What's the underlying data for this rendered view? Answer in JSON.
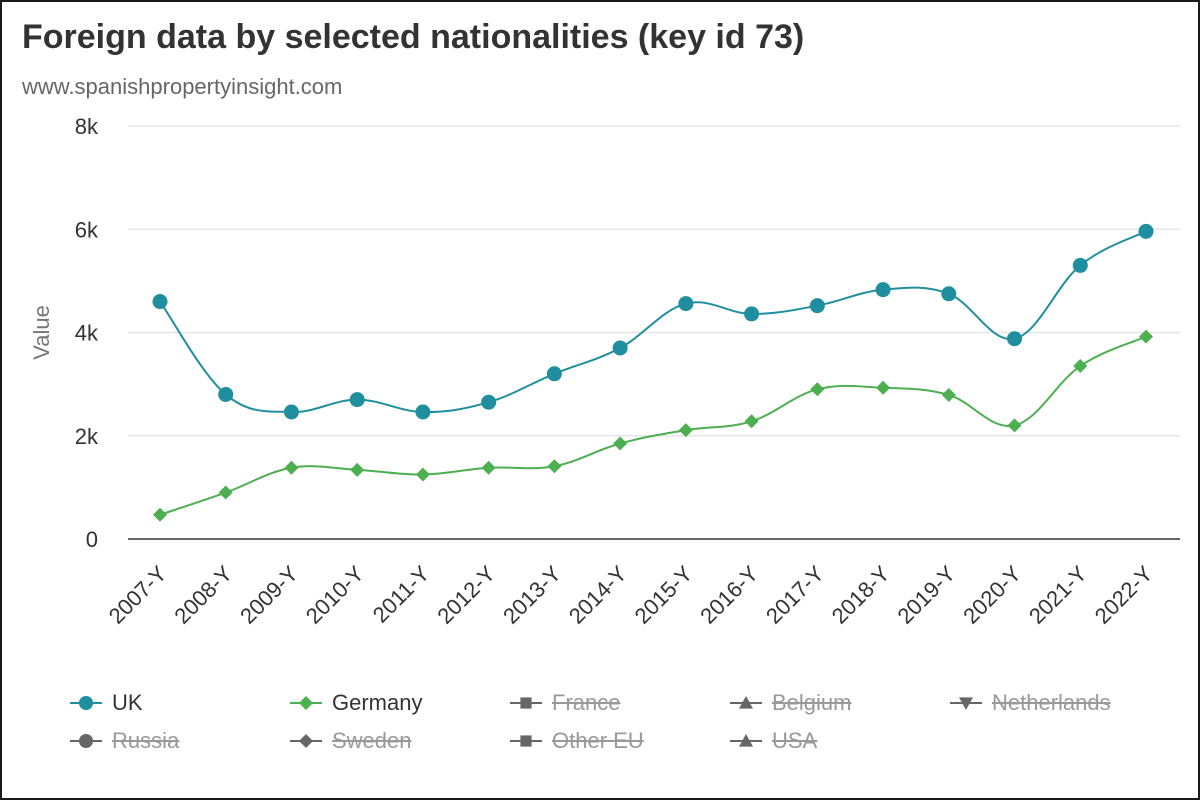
{
  "header": {
    "title": "Foreign data by selected nationalities (key id 73)",
    "subtitle": "www.spanishpropertyinsight.com"
  },
  "chart_data": {
    "type": "line",
    "ylabel": "Value",
    "xlabel": "",
    "ylim": [
      0,
      8000
    ],
    "yticks": [
      0,
      2000,
      4000,
      6000,
      8000
    ],
    "ytick_labels": [
      "0",
      "2k",
      "4k",
      "6k",
      "8k"
    ],
    "grid": true,
    "legend_position": "bottom",
    "categories": [
      "2007-Y",
      "2008-Y",
      "2009-Y",
      "2010-Y",
      "2011-Y",
      "2012-Y",
      "2013-Y",
      "2014-Y",
      "2015-Y",
      "2016-Y",
      "2017-Y",
      "2018-Y",
      "2019-Y",
      "2020-Y",
      "2021-Y",
      "2022-Y"
    ],
    "series": [
      {
        "name": "UK",
        "color": "#1f8fa0",
        "marker": "circle",
        "visible": true,
        "values": [
          4600,
          2800,
          2460,
          2700,
          2460,
          2650,
          3200,
          3700,
          4560,
          4360,
          4520,
          4830,
          4750,
          3880,
          5300,
          5960
        ]
      },
      {
        "name": "Germany",
        "color": "#4caf50",
        "marker": "diamond",
        "visible": true,
        "values": [
          470,
          900,
          1380,
          1340,
          1250,
          1380,
          1410,
          1850,
          2110,
          2280,
          2900,
          2930,
          2790,
          2200,
          3350,
          3920
        ]
      },
      {
        "name": "France",
        "color": "#666666",
        "marker": "square",
        "visible": false
      },
      {
        "name": "Belgium",
        "color": "#666666",
        "marker": "triangle",
        "visible": false
      },
      {
        "name": "Netherlands",
        "color": "#666666",
        "marker": "triangle-down",
        "visible": false
      },
      {
        "name": "Russia",
        "color": "#666666",
        "marker": "circle",
        "visible": false
      },
      {
        "name": "Sweden",
        "color": "#666666",
        "marker": "diamond",
        "visible": false
      },
      {
        "name": "Other EU",
        "color": "#666666",
        "marker": "square",
        "visible": false
      },
      {
        "name": "USA",
        "color": "#666666",
        "marker": "triangle",
        "visible": false
      }
    ]
  }
}
